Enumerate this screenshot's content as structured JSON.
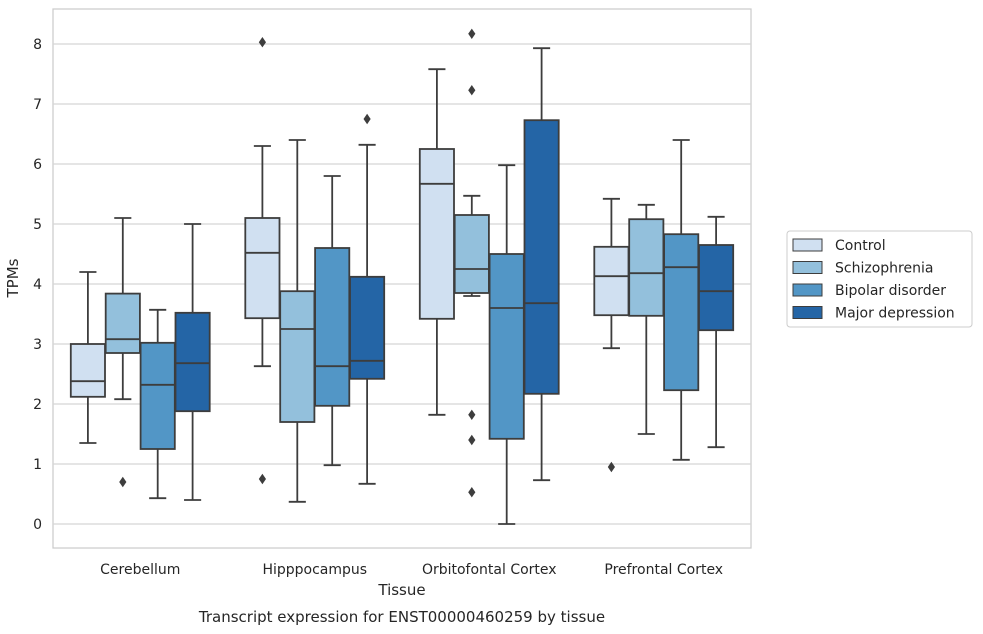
{
  "caption": "Transcript expression for ENST00000460259 by tissue",
  "chart_data": {
    "type": "box",
    "title": "",
    "xlabel": "Tissue",
    "ylabel": "TPMs",
    "ylim": [
      -0.4,
      8.6
    ],
    "yticks": [
      0,
      1,
      2,
      3,
      4,
      5,
      6,
      7,
      8
    ],
    "grid": "horizontal",
    "legend_position": "right",
    "categories": [
      "Cerebellum",
      "Hipppocampus",
      "Orbitofontal Cortex",
      "Prefrontal Cortex"
    ],
    "series": [
      {
        "name": "Control",
        "color": "#d0e0f1",
        "boxes": [
          {
            "whislo": 1.35,
            "q1": 2.12,
            "med": 2.38,
            "q3": 3.0,
            "whishi": 4.2,
            "fliers": []
          },
          {
            "whislo": 2.63,
            "q1": 3.43,
            "med": 4.52,
            "q3": 5.1,
            "whishi": 6.3,
            "fliers": [
              8.03,
              0.75
            ]
          },
          {
            "whislo": 1.82,
            "q1": 3.42,
            "med": 5.67,
            "q3": 6.25,
            "whishi": 7.58,
            "fliers": []
          },
          {
            "whislo": 2.93,
            "q1": 3.48,
            "med": 4.13,
            "q3": 4.62,
            "whishi": 5.42,
            "fliers": [
              0.95
            ]
          }
        ]
      },
      {
        "name": "Schizophrenia",
        "color": "#93c0dc",
        "boxes": [
          {
            "whislo": 2.08,
            "q1": 2.85,
            "med": 3.08,
            "q3": 3.84,
            "whishi": 5.1,
            "fliers": [
              0.7
            ]
          },
          {
            "whislo": 0.37,
            "q1": 1.7,
            "med": 3.25,
            "q3": 3.88,
            "whishi": 6.4,
            "fliers": []
          },
          {
            "whislo": 3.8,
            "q1": 3.85,
            "med": 4.25,
            "q3": 5.15,
            "whishi": 5.47,
            "fliers": [
              8.17,
              7.23,
              1.82,
              1.4,
              0.53
            ]
          },
          {
            "whislo": 1.5,
            "q1": 3.47,
            "med": 4.18,
            "q3": 5.08,
            "whishi": 5.32,
            "fliers": []
          }
        ]
      },
      {
        "name": "Bipolar disorder",
        "color": "#5296c6",
        "boxes": [
          {
            "whislo": 0.43,
            "q1": 1.25,
            "med": 2.32,
            "q3": 3.02,
            "whishi": 3.57,
            "fliers": []
          },
          {
            "whislo": 0.98,
            "q1": 1.97,
            "med": 2.63,
            "q3": 4.6,
            "whishi": 5.8,
            "fliers": []
          },
          {
            "whislo": 0.0,
            "q1": 1.42,
            "med": 3.6,
            "q3": 4.5,
            "whishi": 5.98,
            "fliers": []
          },
          {
            "whislo": 1.07,
            "q1": 2.23,
            "med": 4.28,
            "q3": 4.83,
            "whishi": 6.4,
            "fliers": []
          }
        ]
      },
      {
        "name": "Major depression",
        "color": "#2465a6",
        "boxes": [
          {
            "whislo": 0.4,
            "q1": 1.88,
            "med": 2.68,
            "q3": 3.52,
            "whishi": 5.0,
            "fliers": []
          },
          {
            "whislo": 0.67,
            "q1": 2.42,
            "med": 2.72,
            "q3": 4.12,
            "whishi": 6.32,
            "fliers": [
              6.75
            ]
          },
          {
            "whislo": 0.73,
            "q1": 2.17,
            "med": 3.68,
            "q3": 6.73,
            "whishi": 7.93,
            "fliers": []
          },
          {
            "whislo": 1.28,
            "q1": 3.23,
            "med": 3.88,
            "q3": 4.65,
            "whishi": 5.12,
            "fliers": []
          }
        ]
      }
    ]
  }
}
